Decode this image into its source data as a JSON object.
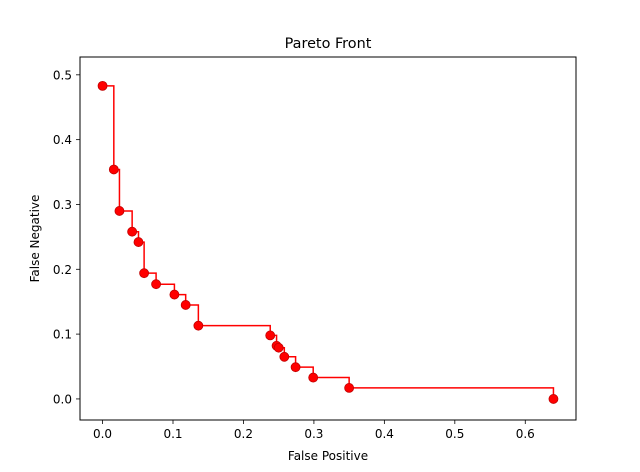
{
  "chart_data": {
    "type": "line",
    "title": "Pareto Front",
    "xlabel": "False Positive",
    "ylabel": "False Negative",
    "xlim": [
      -0.032,
      0.672
    ],
    "ylim": [
      -0.0325,
      0.5275
    ],
    "xticks": [
      0.0,
      0.1,
      0.2,
      0.3,
      0.4,
      0.5,
      0.6
    ],
    "xtick_labels": [
      "0.0",
      "0.1",
      "0.2",
      "0.3",
      "0.4",
      "0.5",
      "0.6"
    ],
    "yticks": [
      0.0,
      0.1,
      0.2,
      0.3,
      0.4,
      0.5
    ],
    "ytick_labels": [
      "0.0",
      "0.1",
      "0.2",
      "0.3",
      "0.4",
      "0.5"
    ],
    "grid": false,
    "series": [
      {
        "name": "Pareto Front",
        "color": "#ff0000",
        "drawstyle": "steps-post",
        "marker": "circle",
        "x": [
          0.0,
          0.016,
          0.024,
          0.042,
          0.051,
          0.059,
          0.076,
          0.102,
          0.118,
          0.136,
          0.238,
          0.247,
          0.25,
          0.258,
          0.274,
          0.299,
          0.35,
          0.64
        ],
        "y": [
          0.483,
          0.354,
          0.29,
          0.258,
          0.242,
          0.194,
          0.177,
          0.161,
          0.145,
          0.113,
          0.098,
          0.082,
          0.079,
          0.065,
          0.049,
          0.033,
          0.017,
          0.0
        ]
      }
    ]
  }
}
